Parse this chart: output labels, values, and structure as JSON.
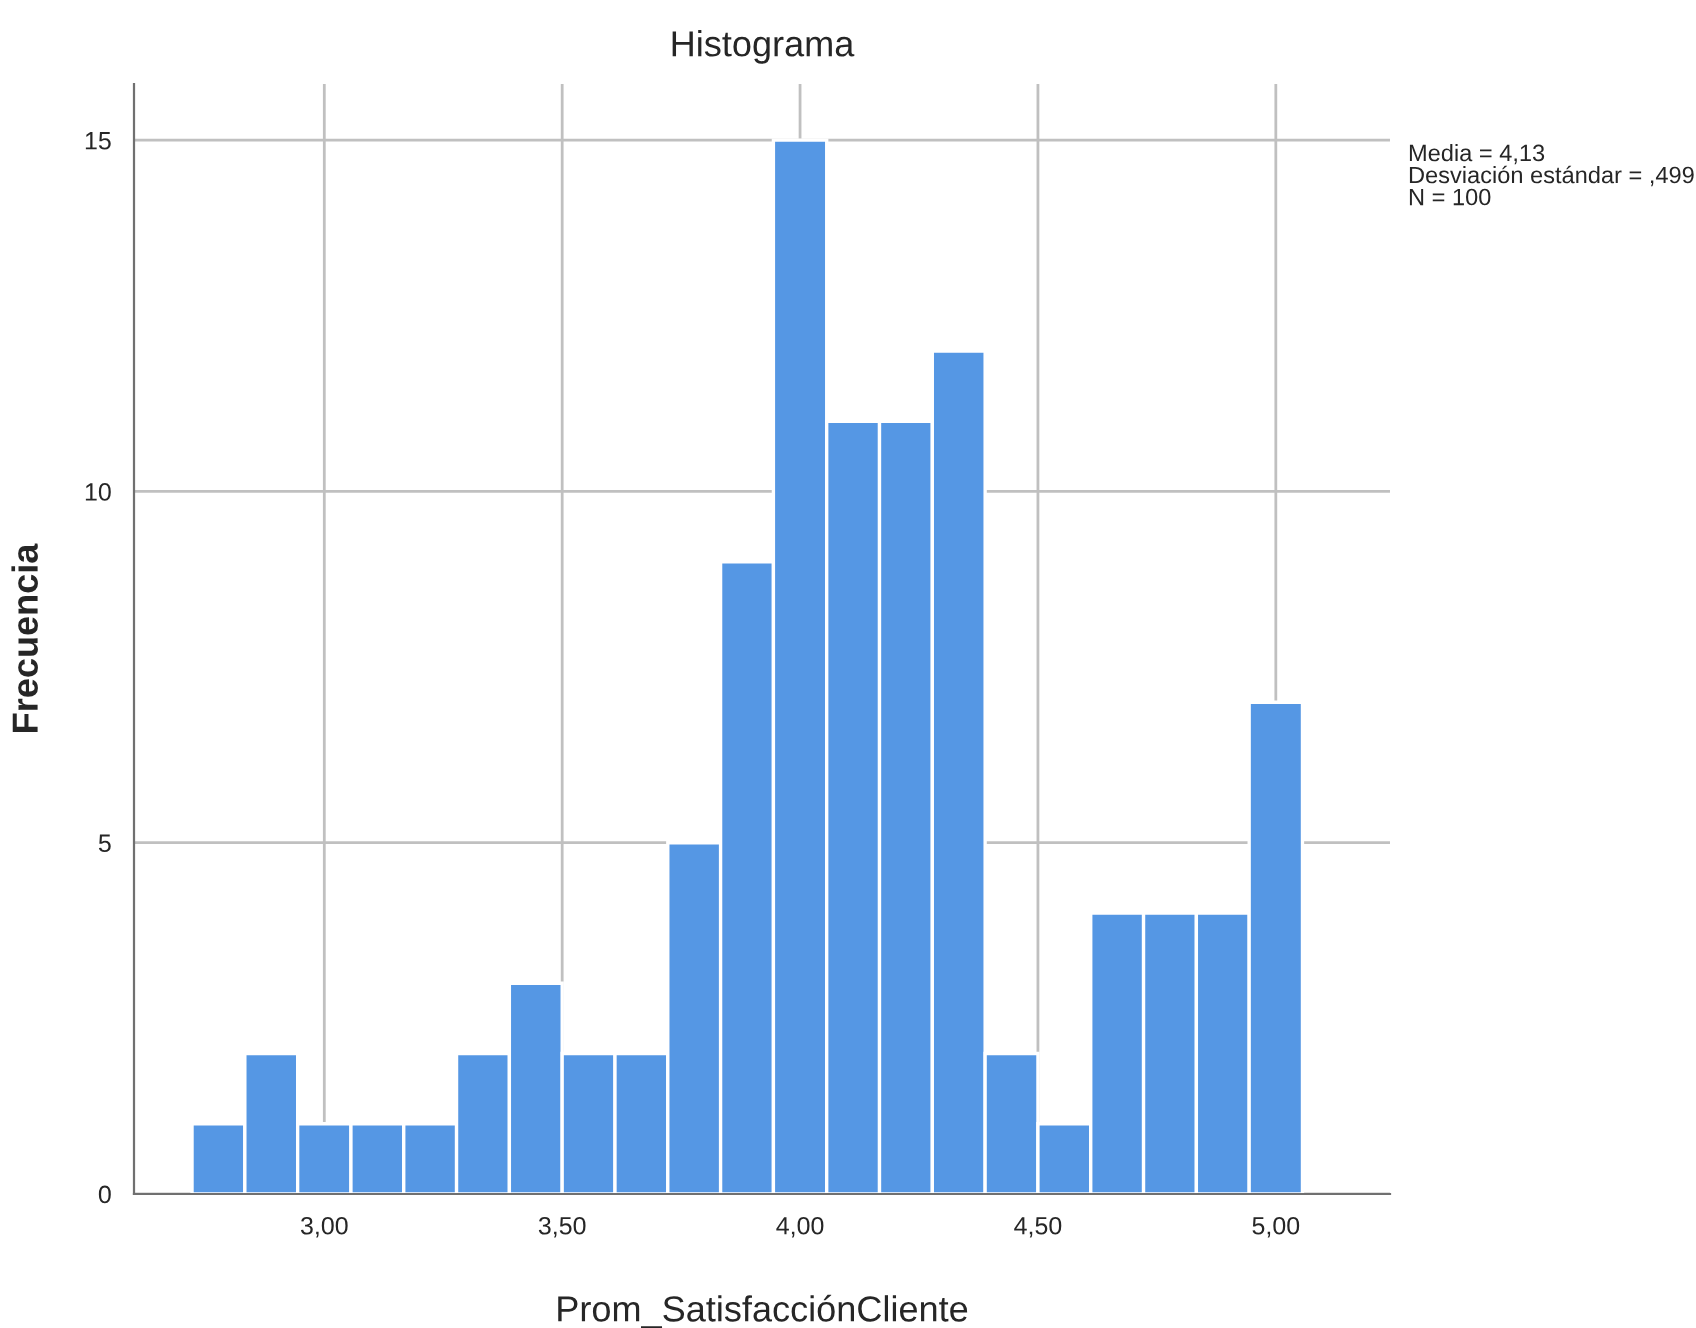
{
  "chart_data": {
    "type": "histogram",
    "title": "Histograma",
    "xlabel": "Prom_SatisfacciónCliente",
    "ylabel": "Frecuencia",
    "bins": [
      2.722,
      2.833,
      2.944,
      3.056,
      3.167,
      3.278,
      3.389,
      3.5,
      3.611,
      3.722,
      3.833,
      3.944,
      4.056,
      4.167,
      4.278,
      4.389,
      4.5,
      4.611,
      4.722,
      4.833,
      4.944,
      5.056
    ],
    "values": [
      1,
      2,
      1,
      1,
      1,
      2,
      3,
      2,
      2,
      5,
      9,
      15,
      11,
      11,
      12,
      2,
      1,
      4,
      4,
      4,
      7
    ],
    "color": "#5597e4",
    "xlim": [
      2.6,
      5.24
    ],
    "ylim": [
      0,
      15.8
    ],
    "xticks": [
      {
        "value": 3.0,
        "label": "3,00"
      },
      {
        "value": 3.5,
        "label": "3,50"
      },
      {
        "value": 4.0,
        "label": "4,00"
      },
      {
        "value": 4.5,
        "label": "4,50"
      },
      {
        "value": 5.0,
        "label": "5,00"
      }
    ],
    "yticks": [
      0,
      5,
      10,
      15
    ],
    "grid": true,
    "annotations": [
      "Media = 4,13\nDesviación estándar = ,499\nN = 100"
    ]
  }
}
